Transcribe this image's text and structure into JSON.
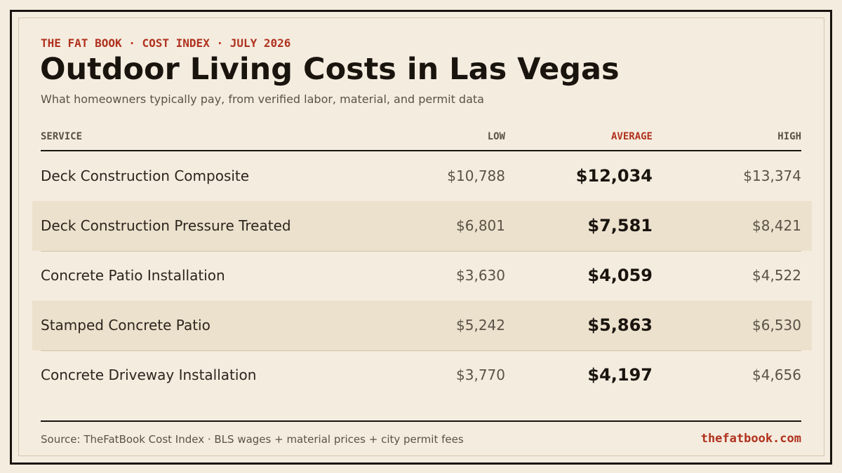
{
  "header": {
    "kicker": "THE FAT BOOK · COST INDEX · JULY 2026",
    "title": "Outdoor Living Costs in Las Vegas",
    "subtitle": "What homeowners typically pay, from verified labor, material, and permit data"
  },
  "table": {
    "columns": [
      "SERVICE",
      "LOW",
      "AVERAGE",
      "HIGH"
    ],
    "rows": [
      [
        "Deck Construction Composite",
        "$10,788",
        "$12,034",
        "$13,374"
      ],
      [
        "Deck Construction Pressure Treated",
        "$6,801",
        "$7,581",
        "$8,421"
      ],
      [
        "Concrete Patio Installation",
        "$3,630",
        "$4,059",
        "$4,522"
      ],
      [
        "Stamped Concrete Patio",
        "$5,242",
        "$5,863",
        "$6,530"
      ],
      [
        "Concrete Driveway Installation",
        "$3,770",
        "$4,197",
        "$4,656"
      ]
    ]
  },
  "footer": {
    "source": "Source: TheFatBook Cost Index · BLS wages + material prices + city permit fees",
    "site": "thefatbook.com"
  }
}
